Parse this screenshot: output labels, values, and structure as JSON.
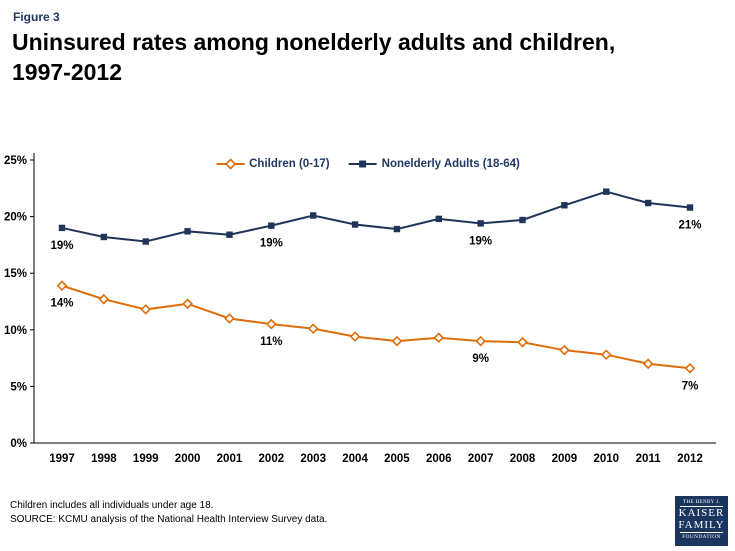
{
  "header": {
    "figure_label": "Figure 3",
    "title": "Uninsured rates among nonelderly adults and children, 1997-2012"
  },
  "colors": {
    "children_orange": "#DC6E0C",
    "adults_navy": "#1F3458",
    "title_navy": "#1F3864",
    "axis_black": "#000000"
  },
  "chart_data": {
    "type": "line",
    "title": "Uninsured rates among nonelderly adults and children, 1997-2012",
    "x": [
      1997,
      1998,
      1999,
      2000,
      2001,
      2002,
      2003,
      2004,
      2005,
      2006,
      2007,
      2008,
      2009,
      2010,
      2011,
      2012
    ],
    "series": [
      {
        "name": "Children (0-17)",
        "color": "#DC6E0C",
        "marker": "diamond",
        "values": [
          13.9,
          12.7,
          11.8,
          12.3,
          11.0,
          10.5,
          10.1,
          9.4,
          9.0,
          9.3,
          9.0,
          8.9,
          8.2,
          7.8,
          7.0,
          6.6
        ]
      },
      {
        "name": "Nonelderly Adults (18-64)",
        "color": "#1F3458",
        "marker": "square",
        "values": [
          19.0,
          18.2,
          17.8,
          18.7,
          18.4,
          19.2,
          20.1,
          19.3,
          18.9,
          19.8,
          19.4,
          19.7,
          21.0,
          22.2,
          21.2,
          20.8
        ]
      }
    ],
    "ylim": [
      0,
      25
    ],
    "yticks": [
      "0%",
      "5%",
      "10%",
      "15%",
      "20%",
      "25%"
    ],
    "xlabel": "",
    "ylabel": "",
    "grid": false,
    "legend_position": "top-center",
    "point_labels": [
      {
        "series": 1,
        "year": 1997,
        "text": "19%"
      },
      {
        "series": 0,
        "year": 1997,
        "text": "14%"
      },
      {
        "series": 1,
        "year": 2002,
        "text": "19%"
      },
      {
        "series": 0,
        "year": 2002,
        "text": "11%"
      },
      {
        "series": 1,
        "year": 2007,
        "text": "19%"
      },
      {
        "series": 0,
        "year": 2007,
        "text": "9%"
      },
      {
        "series": 1,
        "year": 2012,
        "text": "21%"
      },
      {
        "series": 0,
        "year": 2012,
        "text": "7%"
      }
    ]
  },
  "footer": {
    "note": "Children includes all individuals under age 18.",
    "source": "SOURCE:  KCMU analysis of the National Health Interview Survey data.",
    "logo": {
      "line1": "THE HENRY J.",
      "line2": "KAISER",
      "line3": "FAMILY",
      "line4": "FOUNDATION"
    }
  }
}
